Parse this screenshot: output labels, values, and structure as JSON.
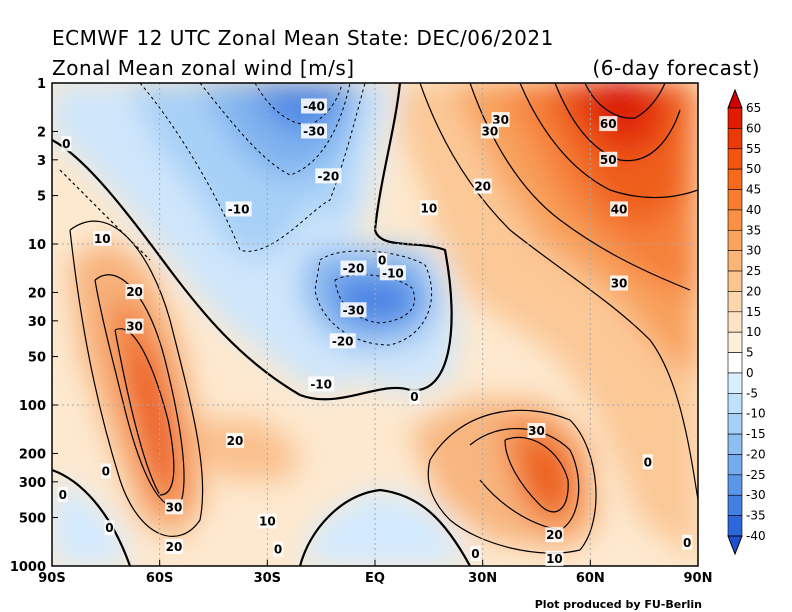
{
  "title_line1": "ECMWF 12 UTC Zonal Mean State: DEC/06/2021",
  "title_line2": "Zonal Mean zonal wind [m/s]",
  "forecast_label": "(6-day forecast)",
  "credit": "Plot produced by FU-Berlin",
  "chart_data": {
    "type": "heatmap",
    "x_axis": {
      "ticks": [
        {
          "value": -90,
          "label": "90S"
        },
        {
          "value": -60,
          "label": "60S"
        },
        {
          "value": -30,
          "label": "30S"
        },
        {
          "value": 0,
          "label": "EQ"
        },
        {
          "value": 30,
          "label": "30N"
        },
        {
          "value": 60,
          "label": "60N"
        },
        {
          "value": 90,
          "label": "90N"
        }
      ],
      "range": [
        -90,
        90
      ]
    },
    "y_axis": {
      "scale": "log",
      "inverted": true,
      "range": [
        1000,
        1
      ],
      "ticks": [
        {
          "value": 1,
          "label": "1"
        },
        {
          "value": 2,
          "label": "2"
        },
        {
          "value": 3,
          "label": "3"
        },
        {
          "value": 5,
          "label": "5"
        },
        {
          "value": 10,
          "label": "10"
        },
        {
          "value": 20,
          "label": "20"
        },
        {
          "value": 30,
          "label": "30"
        },
        {
          "value": 50,
          "label": "50"
        },
        {
          "value": 100,
          "label": "100"
        },
        {
          "value": 200,
          "label": "200"
        },
        {
          "value": 300,
          "label": "300"
        },
        {
          "value": 500,
          "label": "500"
        },
        {
          "value": 1000,
          "label": "1000"
        }
      ]
    },
    "grid": true,
    "colorbar": {
      "levels": [
        65,
        60,
        55,
        50,
        45,
        40,
        35,
        30,
        25,
        20,
        15,
        10,
        5,
        0,
        -5,
        -10,
        -15,
        -20,
        -25,
        -30,
        -35,
        -40
      ],
      "colors": [
        "#d40000",
        "#e21a00",
        "#ec3a06",
        "#f3540e",
        "#f76a1c",
        "#f87d2e",
        "#f99044",
        "#f9a35c",
        "#fab577",
        "#fbc692",
        "#fcd6ac",
        "#fde4c4",
        "#feefdb",
        "#ffffff",
        "#d7efff",
        "#bfe1fb",
        "#a6d1f7",
        "#8dbff3",
        "#74abee",
        "#5b96e9",
        "#437fe3",
        "#2e66dc",
        "#1f4fd2"
      ]
    },
    "contour_labels": [
      {
        "text": "-40",
        "lat": -17,
        "p": 1.4
      },
      {
        "text": "-30",
        "lat": -17,
        "p": 2.0
      },
      {
        "text": "-20",
        "lat": -13,
        "p": 3.8
      },
      {
        "text": "-10",
        "lat": -38,
        "p": 6.1
      },
      {
        "text": "-20",
        "lat": -6,
        "p": 14.2
      },
      {
        "text": "0",
        "lat": 2,
        "p": 12.7
      },
      {
        "text": "-10",
        "lat": 5,
        "p": 15.2
      },
      {
        "text": "-30",
        "lat": -6,
        "p": 25.8
      },
      {
        "text": "-20",
        "lat": -9,
        "p": 40.2
      },
      {
        "text": "-10",
        "lat": -15,
        "p": 74.5
      },
      {
        "text": "0",
        "lat": 11,
        "p": 89.4
      },
      {
        "text": "0",
        "lat": -86,
        "p": 2.4
      },
      {
        "text": "10",
        "lat": -76,
        "p": 9.3
      },
      {
        "text": "20",
        "lat": -67,
        "p": 19.9
      },
      {
        "text": "30",
        "lat": -67,
        "p": 32.6
      },
      {
        "text": "20",
        "lat": -39,
        "p": 167
      },
      {
        "text": "0",
        "lat": -75,
        "p": 259
      },
      {
        "text": "0",
        "lat": -87,
        "p": 362
      },
      {
        "text": "30",
        "lat": -56,
        "p": 432
      },
      {
        "text": "10",
        "lat": -30,
        "p": 529
      },
      {
        "text": "0",
        "lat": -74,
        "p": 582
      },
      {
        "text": "20",
        "lat": -56,
        "p": 762
      },
      {
        "text": "0",
        "lat": -27,
        "p": 791
      },
      {
        "text": "30",
        "lat": 35,
        "p": 1.7
      },
      {
        "text": "30",
        "lat": 32,
        "p": 2.0
      },
      {
        "text": "20",
        "lat": 30,
        "p": 4.4
      },
      {
        "text": "10",
        "lat": 15,
        "p": 6.0
      },
      {
        "text": "60",
        "lat": 65,
        "p": 1.8
      },
      {
        "text": "50",
        "lat": 65,
        "p": 3.0
      },
      {
        "text": "40",
        "lat": 68,
        "p": 6.1
      },
      {
        "text": "30",
        "lat": 68,
        "p": 17.6
      },
      {
        "text": "30",
        "lat": 45,
        "p": 145
      },
      {
        "text": "0",
        "lat": 76,
        "p": 227
      },
      {
        "text": "20",
        "lat": 50,
        "p": 644
      },
      {
        "text": "10",
        "lat": 50,
        "p": 904
      },
      {
        "text": "0",
        "lat": 28,
        "p": 842
      },
      {
        "text": "0",
        "lat": 87,
        "p": 718
      }
    ]
  }
}
